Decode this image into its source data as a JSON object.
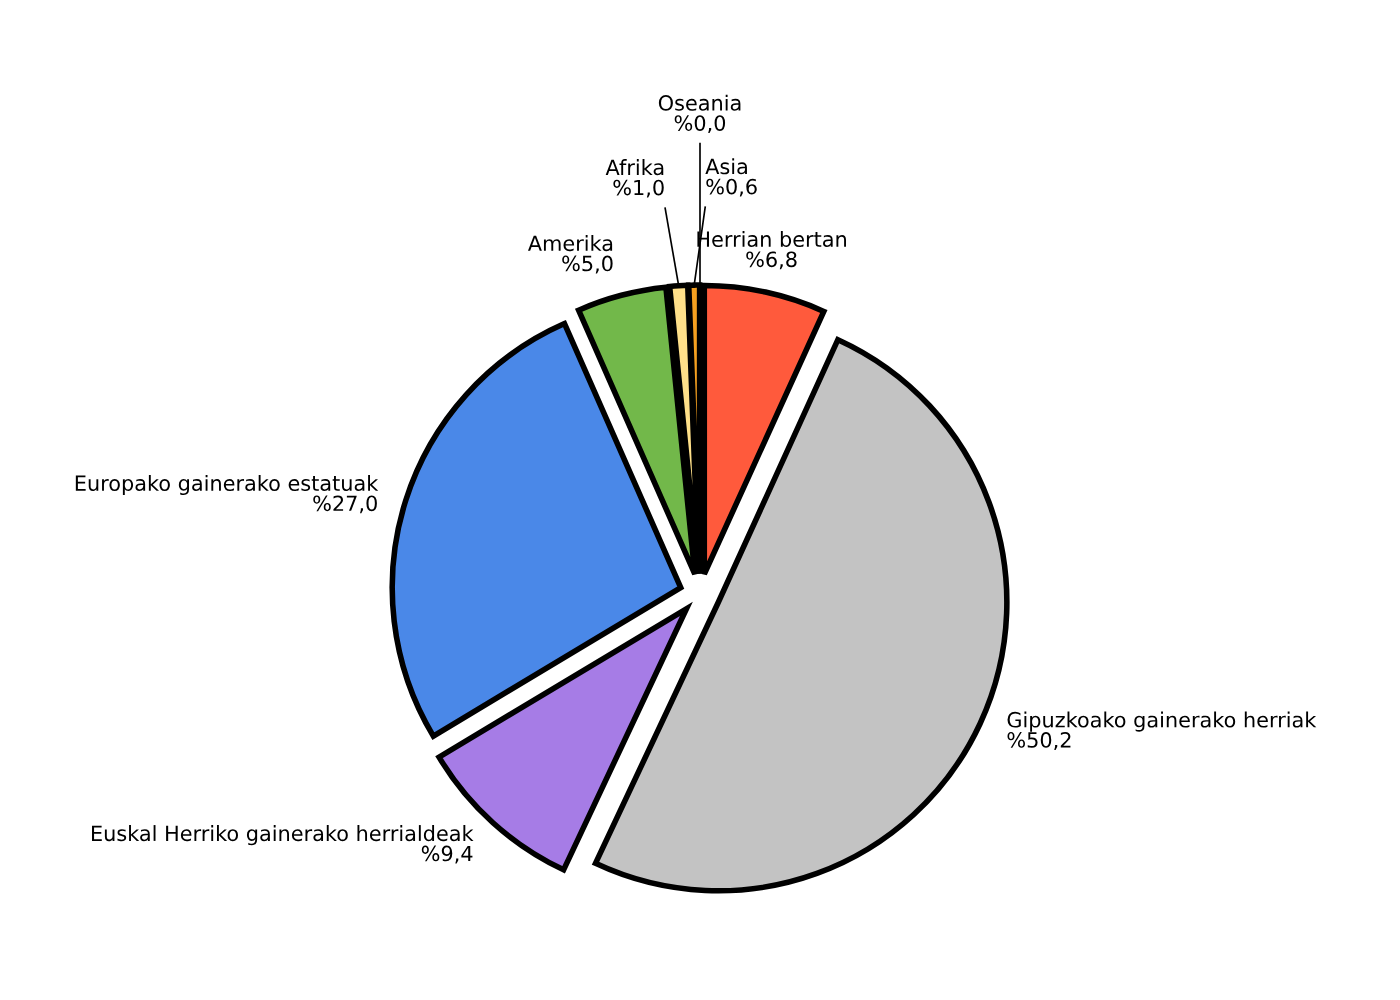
{
  "chart_data": {
    "type": "pie",
    "categories": [
      "Herrian bertan",
      "Gipuzkoako gainerako herriak",
      "Euskal Herriko gainerako herrialdeak",
      "Europako gainerako estatuak",
      "Amerika",
      "Afrika",
      "Asia",
      "Oseania"
    ],
    "values": [
      6.8,
      50.2,
      9.4,
      27.0,
      5.0,
      1.0,
      0.6,
      0.0
    ],
    "value_labels": [
      "%6,8",
      "%50,2",
      "%9,4",
      "%27,0",
      "%5,0",
      "%1,0",
      "%0,6",
      "%0,0"
    ],
    "colors": [
      "#ff5a3c",
      "#c3c3c3",
      "#a67ce6",
      "#4a88e8",
      "#72b84a",
      "#ffe08a",
      "#f5a020",
      "#e0b050"
    ]
  }
}
